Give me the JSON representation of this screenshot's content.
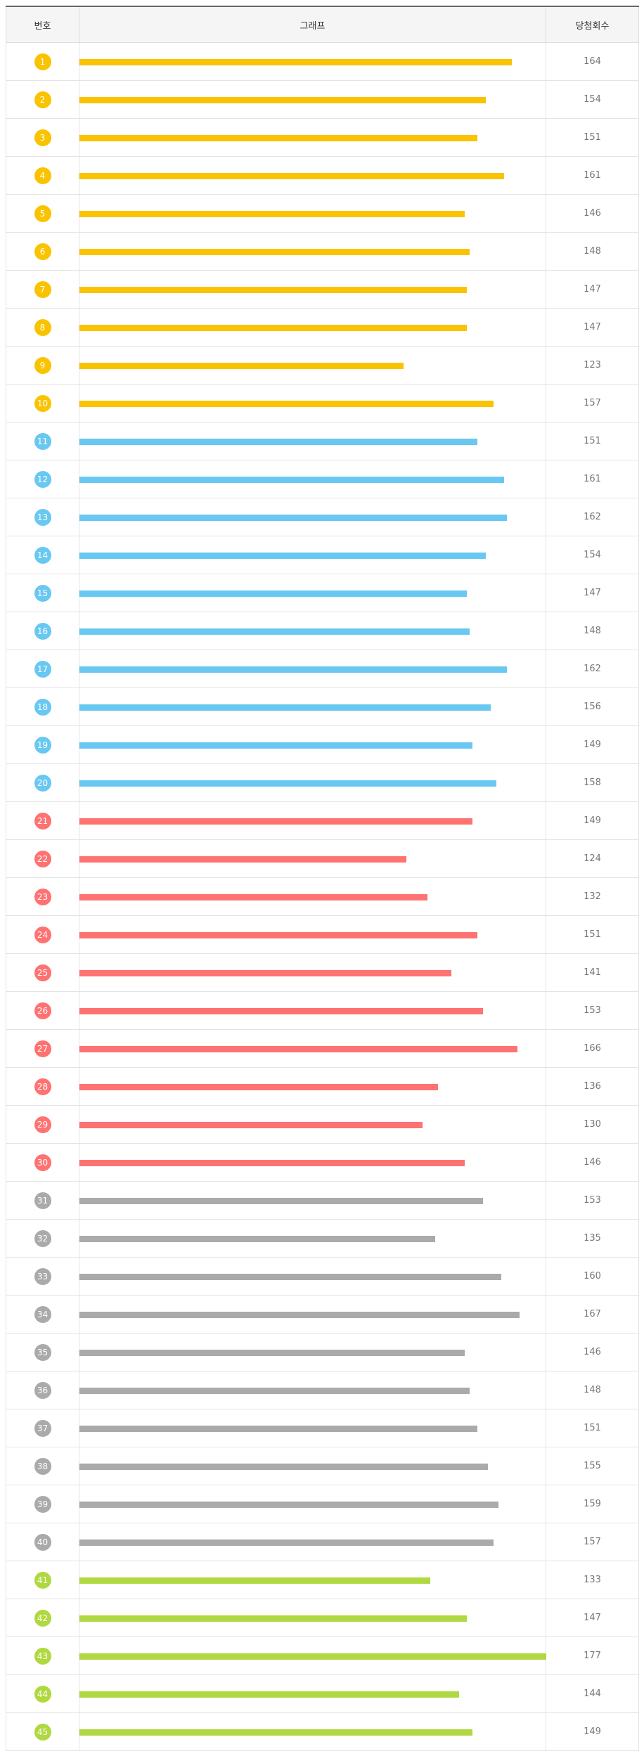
{
  "header": {
    "number_label": "번호",
    "graph_label": "그래프",
    "count_label": "당첨회수"
  },
  "colors": {
    "yellow": "#f9c300",
    "blue": "#69c8f2",
    "red": "#ff7272",
    "gray": "#aaaaaa",
    "green": "#b0d840"
  },
  "chart_data": {
    "type": "bar",
    "orientation": "horizontal",
    "xlim": [
      0,
      177
    ],
    "categories": [
      "1",
      "2",
      "3",
      "4",
      "5",
      "6",
      "7",
      "8",
      "9",
      "10",
      "11",
      "12",
      "13",
      "14",
      "15",
      "16",
      "17",
      "18",
      "19",
      "20",
      "21",
      "22",
      "23",
      "24",
      "25",
      "26",
      "27",
      "28",
      "29",
      "30",
      "31",
      "32",
      "33",
      "34",
      "35",
      "36",
      "37",
      "38",
      "39",
      "40",
      "41",
      "42",
      "43",
      "44",
      "45"
    ],
    "values": [
      164,
      154,
      151,
      161,
      146,
      148,
      147,
      147,
      123,
      157,
      151,
      161,
      162,
      154,
      147,
      148,
      162,
      156,
      149,
      158,
      149,
      124,
      132,
      151,
      141,
      153,
      166,
      136,
      130,
      146,
      153,
      135,
      160,
      167,
      146,
      148,
      151,
      155,
      159,
      157,
      133,
      147,
      177,
      144,
      149
    ],
    "bar_color_groups": [
      {
        "range": [
          1,
          10
        ],
        "color": "yellow"
      },
      {
        "range": [
          11,
          20
        ],
        "color": "blue"
      },
      {
        "range": [
          21,
          30
        ],
        "color": "red"
      },
      {
        "range": [
          31,
          40
        ],
        "color": "gray"
      },
      {
        "range": [
          41,
          45
        ],
        "color": "green"
      }
    ]
  }
}
